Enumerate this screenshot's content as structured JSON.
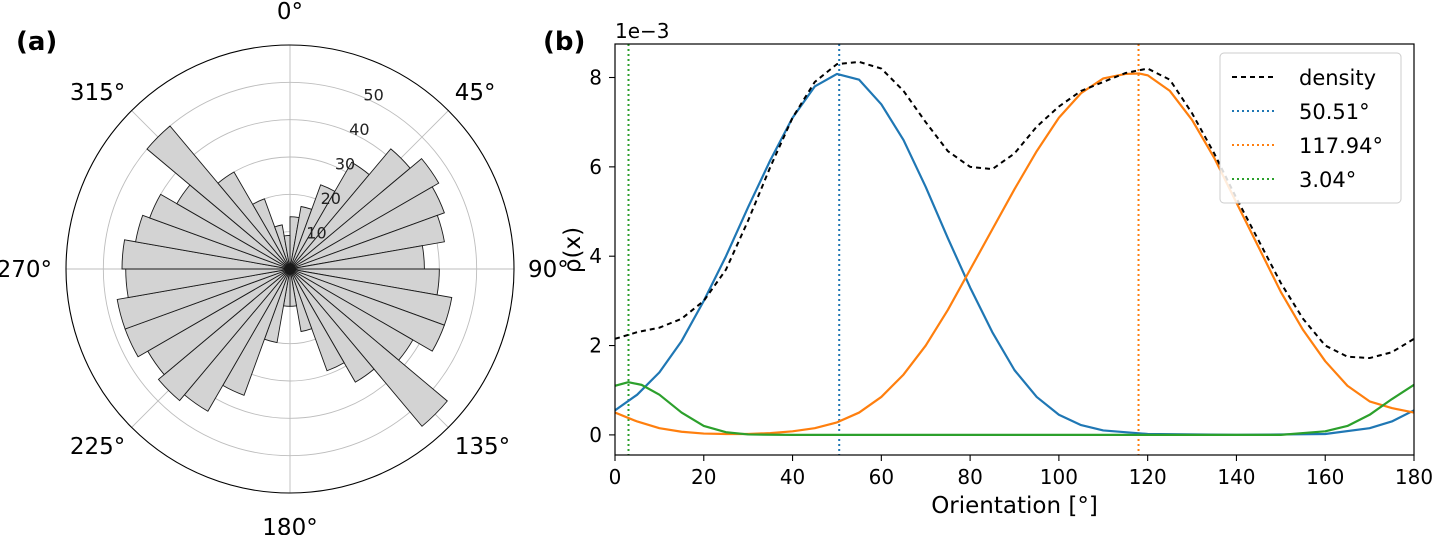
{
  "panels": {
    "a_label": "(a)",
    "b_label": "(b)"
  },
  "chart_data": [
    {
      "type": "bar",
      "subtype": "polar-rose",
      "panel": "(a)",
      "angle_labels": [
        "0°",
        "45°",
        "90°",
        "135°",
        "180°",
        "225°",
        "270°",
        "315°"
      ],
      "radial_ticks": [
        10,
        20,
        30,
        40,
        50
      ],
      "radial_tick_labels": [
        "10",
        "20",
        "30",
        "40",
        "50"
      ],
      "rmax": 60,
      "bin_width_deg": 10,
      "bin_centers_deg": [
        5,
        15,
        25,
        35,
        45,
        55,
        65,
        75,
        85,
        95,
        105,
        115,
        125,
        135,
        145,
        155,
        165,
        175,
        185,
        195,
        205,
        215,
        225,
        235,
        245,
        255,
        265,
        275,
        285,
        295,
        305,
        315,
        325,
        335,
        345,
        355
      ],
      "values": [
        14,
        17,
        24,
        33,
        42,
        46,
        44,
        42,
        36,
        40,
        44,
        44,
        38,
        55,
        35,
        29,
        17,
        10,
        10,
        20,
        36,
        44,
        46,
        44,
        47,
        47,
        44,
        45,
        42,
        40,
        35,
        50,
        30,
        20,
        12,
        9
      ],
      "bar_color": "#d3d3d3",
      "edge_color": "#1a1a1a",
      "grid": true
    },
    {
      "type": "line",
      "panel": "(b)",
      "xlabel": "Orientation [°]",
      "ylabel": "ρ(x)",
      "y_scale_label": "1e−3",
      "xlim": [
        0,
        180
      ],
      "ylim": [
        -0.45,
        8.75
      ],
      "xticks": [
        0,
        20,
        40,
        60,
        80,
        100,
        120,
        140,
        160,
        180
      ],
      "yticks": [
        0,
        2,
        4,
        6,
        8
      ],
      "grid": false,
      "legend_position": "upper right",
      "legend": [
        {
          "label": "density",
          "color": "#000000",
          "style": "dashed"
        },
        {
          "label": "50.51°",
          "color": "#1f77b4",
          "style": "dotted"
        },
        {
          "label": "117.94°",
          "color": "#ff7f0e",
          "style": "dotted"
        },
        {
          "label": "3.04°",
          "color": "#2ca02c",
          "style": "dotted"
        }
      ],
      "vertical_lines": [
        {
          "x": 50.51,
          "color": "#1f77b4"
        },
        {
          "x": 117.94,
          "color": "#ff7f0e"
        },
        {
          "x": 3.04,
          "color": "#2ca02c"
        }
      ],
      "series": [
        {
          "name": "density",
          "color": "#000000",
          "style": "dashed",
          "x": [
            0,
            5,
            10,
            15,
            20,
            25,
            30,
            35,
            40,
            45,
            50,
            55,
            60,
            65,
            70,
            75,
            80,
            85,
            90,
            95,
            100,
            105,
            110,
            115,
            120,
            125,
            130,
            135,
            140,
            145,
            150,
            155,
            160,
            165,
            170,
            175,
            180
          ],
          "values": [
            2.15,
            2.3,
            2.4,
            2.6,
            3.0,
            3.7,
            4.8,
            6.0,
            7.1,
            7.9,
            8.3,
            8.35,
            8.2,
            7.7,
            7.0,
            6.35,
            6.0,
            5.95,
            6.3,
            6.9,
            7.35,
            7.7,
            7.9,
            8.1,
            8.2,
            7.95,
            7.2,
            6.3,
            5.3,
            4.35,
            3.4,
            2.6,
            2.0,
            1.75,
            1.72,
            1.85,
            2.15
          ]
        },
        {
          "name": "component 50.51°",
          "color": "#1f77b4",
          "style": "solid",
          "x": [
            0,
            5,
            10,
            15,
            20,
            25,
            30,
            35,
            40,
            45,
            50,
            55,
            60,
            65,
            70,
            75,
            80,
            85,
            90,
            95,
            100,
            105,
            110,
            120,
            140,
            160,
            170,
            175,
            180
          ],
          "values": [
            0.55,
            0.9,
            1.4,
            2.1,
            3.0,
            4.0,
            5.1,
            6.15,
            7.1,
            7.8,
            8.08,
            7.95,
            7.4,
            6.6,
            5.55,
            4.4,
            3.3,
            2.3,
            1.45,
            0.85,
            0.45,
            0.22,
            0.1,
            0.02,
            0.0,
            0.02,
            0.15,
            0.3,
            0.55
          ]
        },
        {
          "name": "component 117.94°",
          "color": "#ff7f0e",
          "style": "solid",
          "x": [
            0,
            5,
            10,
            15,
            20,
            25,
            30,
            35,
            40,
            45,
            50,
            55,
            60,
            65,
            70,
            75,
            80,
            85,
            90,
            95,
            100,
            105,
            110,
            115,
            118,
            120,
            125,
            130,
            135,
            140,
            145,
            150,
            155,
            160,
            165,
            170,
            175,
            180
          ],
          "values": [
            0.5,
            0.3,
            0.15,
            0.07,
            0.03,
            0.02,
            0.02,
            0.04,
            0.08,
            0.15,
            0.28,
            0.5,
            0.85,
            1.35,
            2.0,
            2.8,
            3.7,
            4.6,
            5.5,
            6.35,
            7.1,
            7.65,
            7.98,
            8.08,
            8.09,
            8.05,
            7.7,
            7.05,
            6.2,
            5.2,
            4.2,
            3.2,
            2.35,
            1.65,
            1.1,
            0.75,
            0.6,
            0.5
          ]
        },
        {
          "name": "component 3.04°",
          "color": "#2ca02c",
          "style": "solid",
          "x": [
            0,
            3,
            6,
            10,
            15,
            20,
            25,
            30,
            40,
            100,
            150,
            160,
            165,
            170,
            175,
            180
          ],
          "values": [
            1.1,
            1.18,
            1.12,
            0.9,
            0.5,
            0.2,
            0.06,
            0.01,
            0.0,
            0.0,
            0.0,
            0.08,
            0.2,
            0.45,
            0.8,
            1.12
          ]
        }
      ]
    }
  ]
}
